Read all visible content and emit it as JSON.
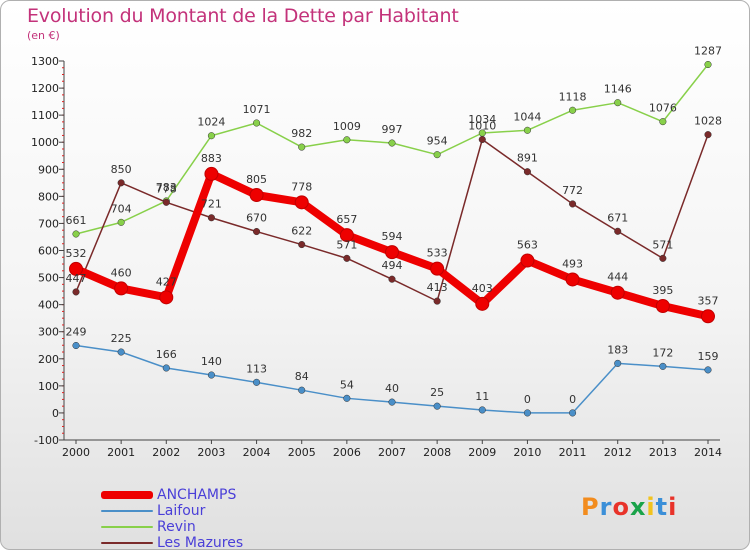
{
  "title": "Evolution du Montant de la Dette par Habitant",
  "unit": "(en €)",
  "logo": {
    "text": "Proxiti",
    "colors": [
      "#f28c1e",
      "#3b8fd8",
      "#e8332a",
      "#1aa34a",
      "#f2c31e",
      "#3b8fd8",
      "#e8332a"
    ]
  },
  "chart_data": {
    "type": "line",
    "title": "Evolution du Montant de la Dette par Habitant",
    "ylabel": "(en €)",
    "xlabel": "",
    "x": [
      2000,
      2001,
      2002,
      2003,
      2004,
      2005,
      2006,
      2007,
      2008,
      2009,
      2010,
      2011,
      2012,
      2013,
      2014
    ],
    "ylim": [
      -100,
      1300
    ],
    "yticks": [
      -100,
      0,
      100,
      200,
      300,
      400,
      500,
      600,
      700,
      800,
      900,
      1000,
      1100,
      1200,
      1300
    ],
    "grid": false,
    "legend_position": "bottom-left",
    "series": [
      {
        "name": "ANCHAMPS",
        "color": "#ee0000",
        "emphasis": true,
        "values": [
          532,
          460,
          427,
          883,
          805,
          778,
          657,
          594,
          533,
          403,
          563,
          493,
          444,
          395,
          357
        ]
      },
      {
        "name": "Laifour",
        "color": "#4a8fc8",
        "emphasis": false,
        "values": [
          249,
          225,
          166,
          140,
          113,
          84,
          54,
          40,
          25,
          11,
          0,
          0,
          183,
          172,
          159
        ]
      },
      {
        "name": "Revin",
        "color": "#88d04a",
        "emphasis": false,
        "values": [
          661,
          704,
          783,
          1024,
          1071,
          982,
          1009,
          997,
          954,
          1034,
          1044,
          1118,
          1146,
          1076,
          1287
        ]
      },
      {
        "name": "Les Mazures",
        "color": "#7a2a2a",
        "emphasis": false,
        "values": [
          447,
          850,
          778,
          721,
          670,
          622,
          571,
          494,
          413,
          1010,
          891,
          772,
          671,
          571,
          1028
        ]
      }
    ]
  }
}
